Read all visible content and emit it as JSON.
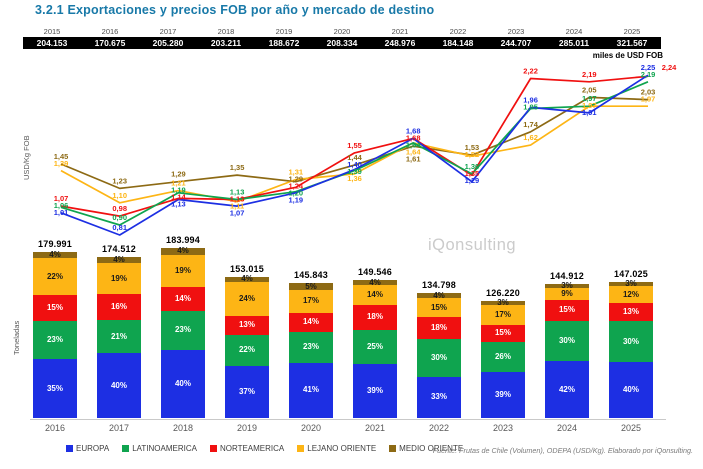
{
  "title": "3.2.1 Exportaciones y precios FOB por año y mercado de destino",
  "top_table": {
    "years": [
      "2015",
      "2016",
      "2017",
      "2018",
      "2019",
      "2020",
      "2021",
      "2022",
      "2023",
      "2024",
      "2025"
    ],
    "values": [
      "204.153",
      "170.675",
      "205.280",
      "203.211",
      "188.672",
      "208.334",
      "248.976",
      "184.148",
      "244.707",
      "285.011",
      "321.567"
    ],
    "unit_label": "miles de USD FOB"
  },
  "watermark": "iQonsulting",
  "footer": "Fuente: Frutas de Chile (Volumen), ODEPA (USD/Kg). Elaborado por iQonsulting.",
  "chart_data": [
    {
      "type": "line",
      "ylabel": "USD/Kg FOB",
      "x": [
        2015,
        2016,
        2017,
        2018,
        2019,
        2020,
        2021,
        2022,
        2023,
        2024,
        2025
      ],
      "ylim": [
        0.7,
        2.4
      ],
      "grid": false,
      "series": [
        {
          "name": "EUROPA",
          "color": "#1D2FE3",
          "values": [
            1.01,
            0.81,
            1.13,
            1.07,
            1.19,
            1.4,
            1.68,
            1.29,
            1.96,
            1.91,
            2.25
          ]
        },
        {
          "name": "LATINOAMERICA",
          "color": "#0FA44F",
          "values": [
            1.06,
            0.9,
            1.19,
            1.13,
            1.2,
            1.39,
            1.64,
            1.36,
            1.95,
            1.97,
            2.19
          ]
        },
        {
          "name": "NORTEAMERICA",
          "color": "#F01010",
          "values": [
            1.07,
            0.98,
            1.14,
            1.13,
            1.24,
            1.55,
            1.68,
            1.35,
            2.22,
            2.19,
            2.24
          ]
        },
        {
          "name": "LEJANO ORIENTE",
          "color": "#FDB515",
          "values": [
            1.39,
            1.1,
            1.21,
            1.11,
            1.31,
            1.36,
            1.64,
            1.52,
            1.62,
            1.97,
            1.97
          ]
        },
        {
          "name": "MEDIO ORIENTE",
          "color": "#8D6A14",
          "values": [
            1.45,
            1.23,
            1.29,
            1.35,
            1.29,
            1.44,
            1.61,
            1.53,
            1.74,
            2.05,
            2.03
          ]
        }
      ]
    },
    {
      "type": "bar",
      "subtype": "stacked-percent",
      "ylabel": "Toneladas",
      "categories": [
        "2016",
        "2017",
        "2018",
        "2019",
        "2020",
        "2021",
        "2022",
        "2023",
        "2024",
        "2025"
      ],
      "totals": [
        179991,
        174512,
        183994,
        153015,
        145843,
        149546,
        134798,
        126220,
        144912,
        147025
      ],
      "totals_display": [
        "179.991",
        "174.512",
        "183.994",
        "153.015",
        "145.843",
        "149.546",
        "134.798",
        "126.220",
        "144.912",
        "147.025"
      ],
      "series": [
        {
          "name": "EUROPA",
          "color": "#1D2FE3",
          "label_color": "#ffffff",
          "values": [
            35,
            40,
            40,
            37,
            41,
            39,
            33,
            39,
            42,
            40
          ]
        },
        {
          "name": "LATINOAMERICA",
          "color": "#0FA44F",
          "label_color": "#ffffff",
          "values": [
            23,
            21,
            23,
            22,
            23,
            25,
            30,
            26,
            30,
            30
          ]
        },
        {
          "name": "NORTEAMERICA",
          "color": "#F01010",
          "label_color": "#ffffff",
          "values": [
            15,
            16,
            14,
            13,
            14,
            18,
            18,
            15,
            15,
            13
          ]
        },
        {
          "name": "LEJANO ORIENTE",
          "color": "#FDB515",
          "label_color": "#1a1a1a",
          "values": [
            22,
            19,
            19,
            24,
            17,
            14,
            15,
            17,
            9,
            12
          ]
        },
        {
          "name": "MEDIO ORIENTE",
          "color": "#8D6A14",
          "label_color": "#1a1a1a",
          "values": [
            4,
            4,
            4,
            4,
            5,
            4,
            4,
            3,
            3,
            3
          ]
        }
      ]
    }
  ]
}
